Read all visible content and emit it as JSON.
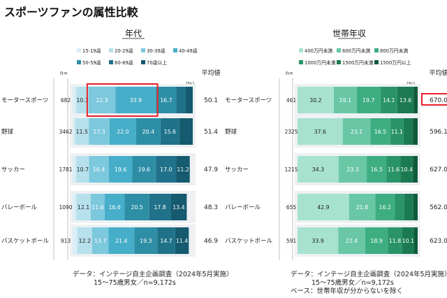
{
  "page_title": "スポーツファンの属性比較",
  "chart_data": [
    {
      "type": "stacked-bar-horizontal",
      "title": "年代",
      "unit_label": "(%)",
      "n_header": "n=",
      "avg_header": "平均値",
      "categories": [
        "モータースポーツ",
        "野球",
        "サッカー",
        "バレーボール",
        "バスケットボール"
      ],
      "n": [
        "682",
        "3462",
        "1781",
        "1090",
        "913"
      ],
      "averages": [
        "50.1",
        "51.4",
        "47.9",
        "48.3",
        "46.9"
      ],
      "highlight_segments": [
        [
          0,
          2
        ],
        [
          0,
          3
        ]
      ],
      "series": [
        {
          "name": "15-19歳",
          "color": "#d8eef4",
          "values": [
            3.0,
            2.0,
            3.0,
            3.0,
            4.0
          ]
        },
        {
          "name": "20-29歳",
          "color": "#b6e0ec",
          "values": [
            10.3,
            11.5,
            10.7,
            12.1,
            12.2
          ]
        },
        {
          "name": "30-39歳",
          "color": "#7cc8dc",
          "values": [
            22.3,
            17.3,
            16.4,
            11.6,
            13.7
          ]
        },
        {
          "name": "40-49歳",
          "color": "#46aec8",
          "values": [
            33.9,
            22.0,
            19.6,
            16.6,
            21.4
          ]
        },
        {
          "name": "50-59歳",
          "color": "#2e8ea6",
          "values": [
            16.7,
            20.4,
            19.6,
            20.5,
            19.3
          ]
        },
        {
          "name": "60-69歳",
          "color": "#1f7289",
          "values": [
            8.0,
            15.6,
            17.0,
            17.8,
            14.7
          ]
        },
        {
          "name": "70歳以上",
          "color": "#155a6e",
          "values": [
            5.8,
            11.2,
            11.2,
            13.4,
            11.4
          ]
        }
      ],
      "labels": [
        [
          null,
          "10.3",
          "22.3",
          "33.9",
          "16.7",
          null,
          null
        ],
        [
          null,
          "11.5",
          "17.3",
          "22.0",
          "20.4",
          "15.6",
          null
        ],
        [
          null,
          "10.7",
          "16.4",
          "19.6",
          "19.6",
          "17.0",
          "11.2"
        ],
        [
          null,
          "12.1",
          "11.6",
          "16.6",
          "20.5",
          "17.8",
          "13.4"
        ],
        [
          null,
          "12.2",
          "13.7",
          "21.4",
          "19.3",
          "14.7",
          "11.4"
        ]
      ],
      "xlim": [
        0,
        100
      ]
    },
    {
      "type": "stacked-bar-horizontal",
      "title": "世帯年収",
      "unit_label": "(%)",
      "n_header": "n=",
      "avg_header": "平均値",
      "categories": [
        "モータースポーツ",
        "野球",
        "サッカー",
        "バレーボール",
        "バスケットボール"
      ],
      "n": [
        "461",
        "2325",
        "1215",
        "655",
        "591"
      ],
      "averages": [
        "670.0",
        "596.1",
        "627.0",
        "562.0",
        "623.0"
      ],
      "highlight_average_index": 0,
      "series": [
        {
          "name": "400万円未満",
          "color": "#a7e2cf",
          "values": [
            30.2,
            37.6,
            34.3,
            42.9,
            33.9
          ]
        },
        {
          "name": "600万円未満",
          "color": "#69c7a6",
          "values": [
            19.1,
            23.1,
            23.3,
            21.8,
            22.4
          ]
        },
        {
          "name": "800万円未満",
          "color": "#3eae82",
          "values": [
            19.7,
            16.5,
            16.5,
            16.2,
            18.9
          ]
        },
        {
          "name": "1000万円未満",
          "color": "#2a9468",
          "values": [
            14.1,
            11.1,
            11.6,
            8.0,
            11.8
          ]
        },
        {
          "name": "1500万円未満",
          "color": "#1c7a52",
          "values": [
            13.6,
            7.7,
            10.4,
            7.5,
            10.1
          ]
        },
        {
          "name": "1500万円以上",
          "color": "#0f5a3a",
          "values": [
            3.3,
            4.0,
            3.9,
            3.6,
            2.9
          ]
        }
      ],
      "labels": [
        [
          "30.2",
          "19.1",
          "19.7",
          "14.1",
          "13.6",
          null
        ],
        [
          "37.6",
          "23.1",
          "16.5",
          "11.1",
          null,
          null
        ],
        [
          "34.3",
          "23.3",
          "16.5",
          "11.6",
          "10.4",
          null
        ],
        [
          "42.9",
          "21.8",
          "16.2",
          null,
          null,
          null
        ],
        [
          "33.9",
          "22.4",
          "18.9",
          "11.8",
          "10.1",
          null
        ]
      ],
      "xlim": [
        0,
        100
      ]
    }
  ],
  "source_left": [
    "データ：インテージ自主企画調査（2024年5月実施）",
    "15～75歳男女／n=9,172s"
  ],
  "source_right": [
    "データ：インテージ自主企画調査（2024年5月実施）",
    "15～75歳男女／n=9,172s",
    "ベース：世帯年収が分からないを除く"
  ]
}
